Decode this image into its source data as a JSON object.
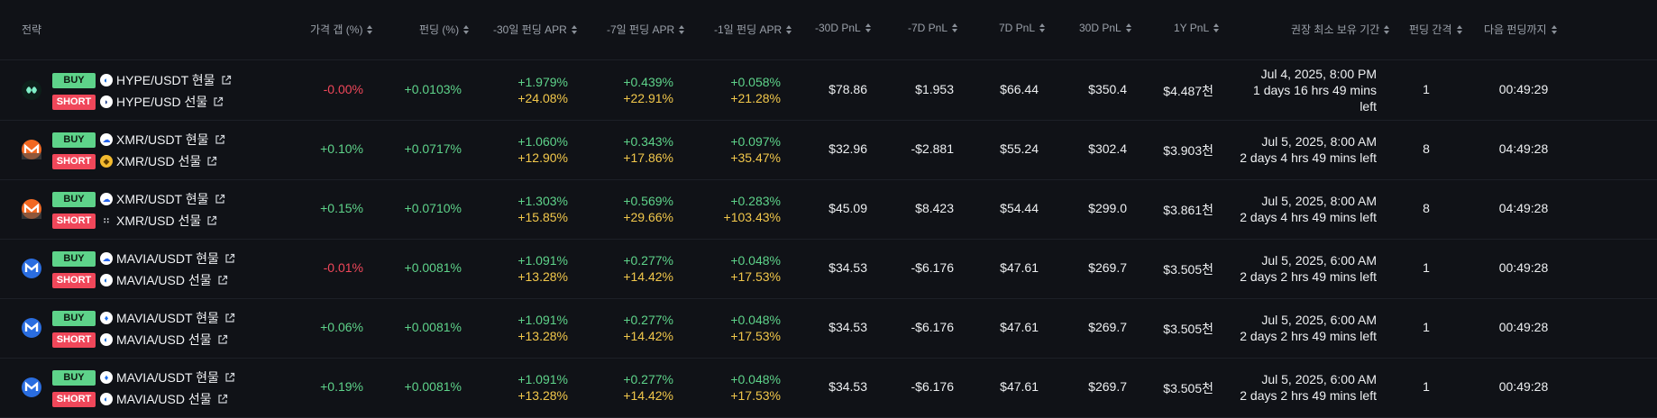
{
  "headers": {
    "strategy": "전략",
    "price_gap": "가격 갭 (%)",
    "funding": "펀딩 (%)",
    "apr30": "-30일 펀딩 APR",
    "apr7": "-7일 펀딩 APR",
    "apr1": "-1일 펀딩 APR",
    "pnl30": "-30D PnL",
    "pnl7": "-7D PnL",
    "pnl7d": "7D PnL",
    "pnl30d": "30D PnL",
    "pnl1y": "1Y PnL",
    "hold": "권장 최소 보유 기간",
    "interval": "펀딩 간격",
    "next": "다음 펀딩까지"
  },
  "colors": {
    "positive": "#5ed38a",
    "negative": "#f0475a",
    "yellow": "#f2c84b"
  },
  "rows": [
    {
      "coin_icon": "hype-icon",
      "coin_color": "#0d1f1a",
      "buy_badge": "BUY",
      "buy_pair": "HYPE/USDT 현물",
      "buy_exchange_icon": "exchange-a-icon",
      "short_badge": "SHORT",
      "short_pair": "HYPE/USD 선물",
      "short_exchange_icon": "exchange-b-icon",
      "price_gap": "-0.00%",
      "gap_sign": "neg",
      "funding": "+0.0103%",
      "apr30_a": "+1.979%",
      "apr30_b": "+24.08%",
      "apr7_a": "+0.439%",
      "apr7_b": "+22.91%",
      "apr1_a": "+0.058%",
      "apr1_b": "+21.28%",
      "pnl30": "$78.86",
      "pnl7": "$1.953",
      "pnl7d": "$66.44",
      "pnl30d": "$350.4",
      "pnl1y": "$4.487천",
      "hold_date": "Jul 4, 2025, 8:00 PM",
      "hold_dur1": "1 days 16 hrs 49 mins",
      "hold_dur2": "left",
      "interval": "1",
      "next": "00:49:29"
    },
    {
      "coin_icon": "monero-icon",
      "coin_color": "#f26822",
      "buy_badge": "BUY",
      "buy_pair": "XMR/USDT 현물",
      "buy_exchange_icon": "cloud-exchange-icon",
      "short_badge": "SHORT",
      "short_pair": "XMR/USD 선물",
      "short_exchange_icon": "gold-exchange-icon",
      "price_gap": "+0.10%",
      "gap_sign": "pos",
      "funding": "+0.0717%",
      "apr30_a": "+1.060%",
      "apr30_b": "+12.90%",
      "apr7_a": "+0.343%",
      "apr7_b": "+17.86%",
      "apr1_a": "+0.097%",
      "apr1_b": "+35.47%",
      "pnl30": "$32.96",
      "pnl7": "-$2.881",
      "pnl7d": "$55.24",
      "pnl30d": "$302.4",
      "pnl1y": "$3.903천",
      "hold_date": "Jul 5, 2025, 8:00 AM",
      "hold_dur1": "2 days 4 hrs 49 mins left",
      "hold_dur2": "",
      "interval": "8",
      "next": "04:49:28"
    },
    {
      "coin_icon": "monero-icon",
      "coin_color": "#f26822",
      "buy_badge": "BUY",
      "buy_pair": "XMR/USDT 현물",
      "buy_exchange_icon": "cloud-exchange-icon",
      "short_badge": "SHORT",
      "short_pair": "XMR/USD 선물",
      "short_exchange_icon": "dots-exchange-icon",
      "price_gap": "+0.15%",
      "gap_sign": "pos",
      "funding": "+0.0710%",
      "apr30_a": "+1.303%",
      "apr30_b": "+15.85%",
      "apr7_a": "+0.569%",
      "apr7_b": "+29.66%",
      "apr1_a": "+0.283%",
      "apr1_b": "+103.43%",
      "pnl30": "$45.09",
      "pnl7": "$8.423",
      "pnl7d": "$54.44",
      "pnl30d": "$299.0",
      "pnl1y": "$3.861천",
      "hold_date": "Jul 5, 2025, 8:00 AM",
      "hold_dur1": "2 days 4 hrs 49 mins left",
      "hold_dur2": "",
      "interval": "8",
      "next": "04:49:28"
    },
    {
      "coin_icon": "mavia-icon",
      "coin_color": "#2a6de0",
      "buy_badge": "BUY",
      "buy_pair": "MAVIA/USDT 현물",
      "buy_exchange_icon": "cloud-exchange-icon",
      "short_badge": "SHORT",
      "short_pair": "MAVIA/USD 선물",
      "short_exchange_icon": "exchange-a-icon",
      "price_gap": "-0.01%",
      "gap_sign": "neg",
      "funding": "+0.0081%",
      "apr30_a": "+1.091%",
      "apr30_b": "+13.28%",
      "apr7_a": "+0.277%",
      "apr7_b": "+14.42%",
      "apr1_a": "+0.048%",
      "apr1_b": "+17.53%",
      "pnl30": "$34.53",
      "pnl7": "-$6.176",
      "pnl7d": "$47.61",
      "pnl30d": "$269.7",
      "pnl1y": "$3.505천",
      "hold_date": "Jul 5, 2025, 6:00 AM",
      "hold_dur1": "2 days 2 hrs 49 mins left",
      "hold_dur2": "",
      "interval": "1",
      "next": "00:49:28"
    },
    {
      "coin_icon": "mavia-icon",
      "coin_color": "#2a6de0",
      "buy_badge": "BUY",
      "buy_pair": "MAVIA/USDT 현물",
      "buy_exchange_icon": "flame-exchange-icon",
      "short_badge": "SHORT",
      "short_pair": "MAVIA/USD 선물",
      "short_exchange_icon": "exchange-a-icon",
      "price_gap": "+0.06%",
      "gap_sign": "pos",
      "funding": "+0.0081%",
      "apr30_a": "+1.091%",
      "apr30_b": "+13.28%",
      "apr7_a": "+0.277%",
      "apr7_b": "+14.42%",
      "apr1_a": "+0.048%",
      "apr1_b": "+17.53%",
      "pnl30": "$34.53",
      "pnl7": "-$6.176",
      "pnl7d": "$47.61",
      "pnl30d": "$269.7",
      "pnl1y": "$3.505천",
      "hold_date": "Jul 5, 2025, 6:00 AM",
      "hold_dur1": "2 days 2 hrs 49 mins left",
      "hold_dur2": "",
      "interval": "1",
      "next": "00:49:28"
    },
    {
      "coin_icon": "mavia-icon",
      "coin_color": "#2a6de0",
      "buy_badge": "BUY",
      "buy_pair": "MAVIA/USDT 현물",
      "buy_exchange_icon": "flame-exchange-icon",
      "short_badge": "SHORT",
      "short_pair": "MAVIA/USD 선물",
      "short_exchange_icon": "exchange-a-icon",
      "price_gap": "+0.19%",
      "gap_sign": "pos",
      "funding": "+0.0081%",
      "apr30_a": "+1.091%",
      "apr30_b": "+13.28%",
      "apr7_a": "+0.277%",
      "apr7_b": "+14.42%",
      "apr1_a": "+0.048%",
      "apr1_b": "+17.53%",
      "pnl30": "$34.53",
      "pnl7": "-$6.176",
      "pnl7d": "$47.61",
      "pnl30d": "$269.7",
      "pnl1y": "$3.505천",
      "hold_date": "Jul 5, 2025, 6:00 AM",
      "hold_dur1": "2 days 2 hrs 49 mins left",
      "hold_dur2": "",
      "interval": "1",
      "next": "00:49:28"
    }
  ]
}
